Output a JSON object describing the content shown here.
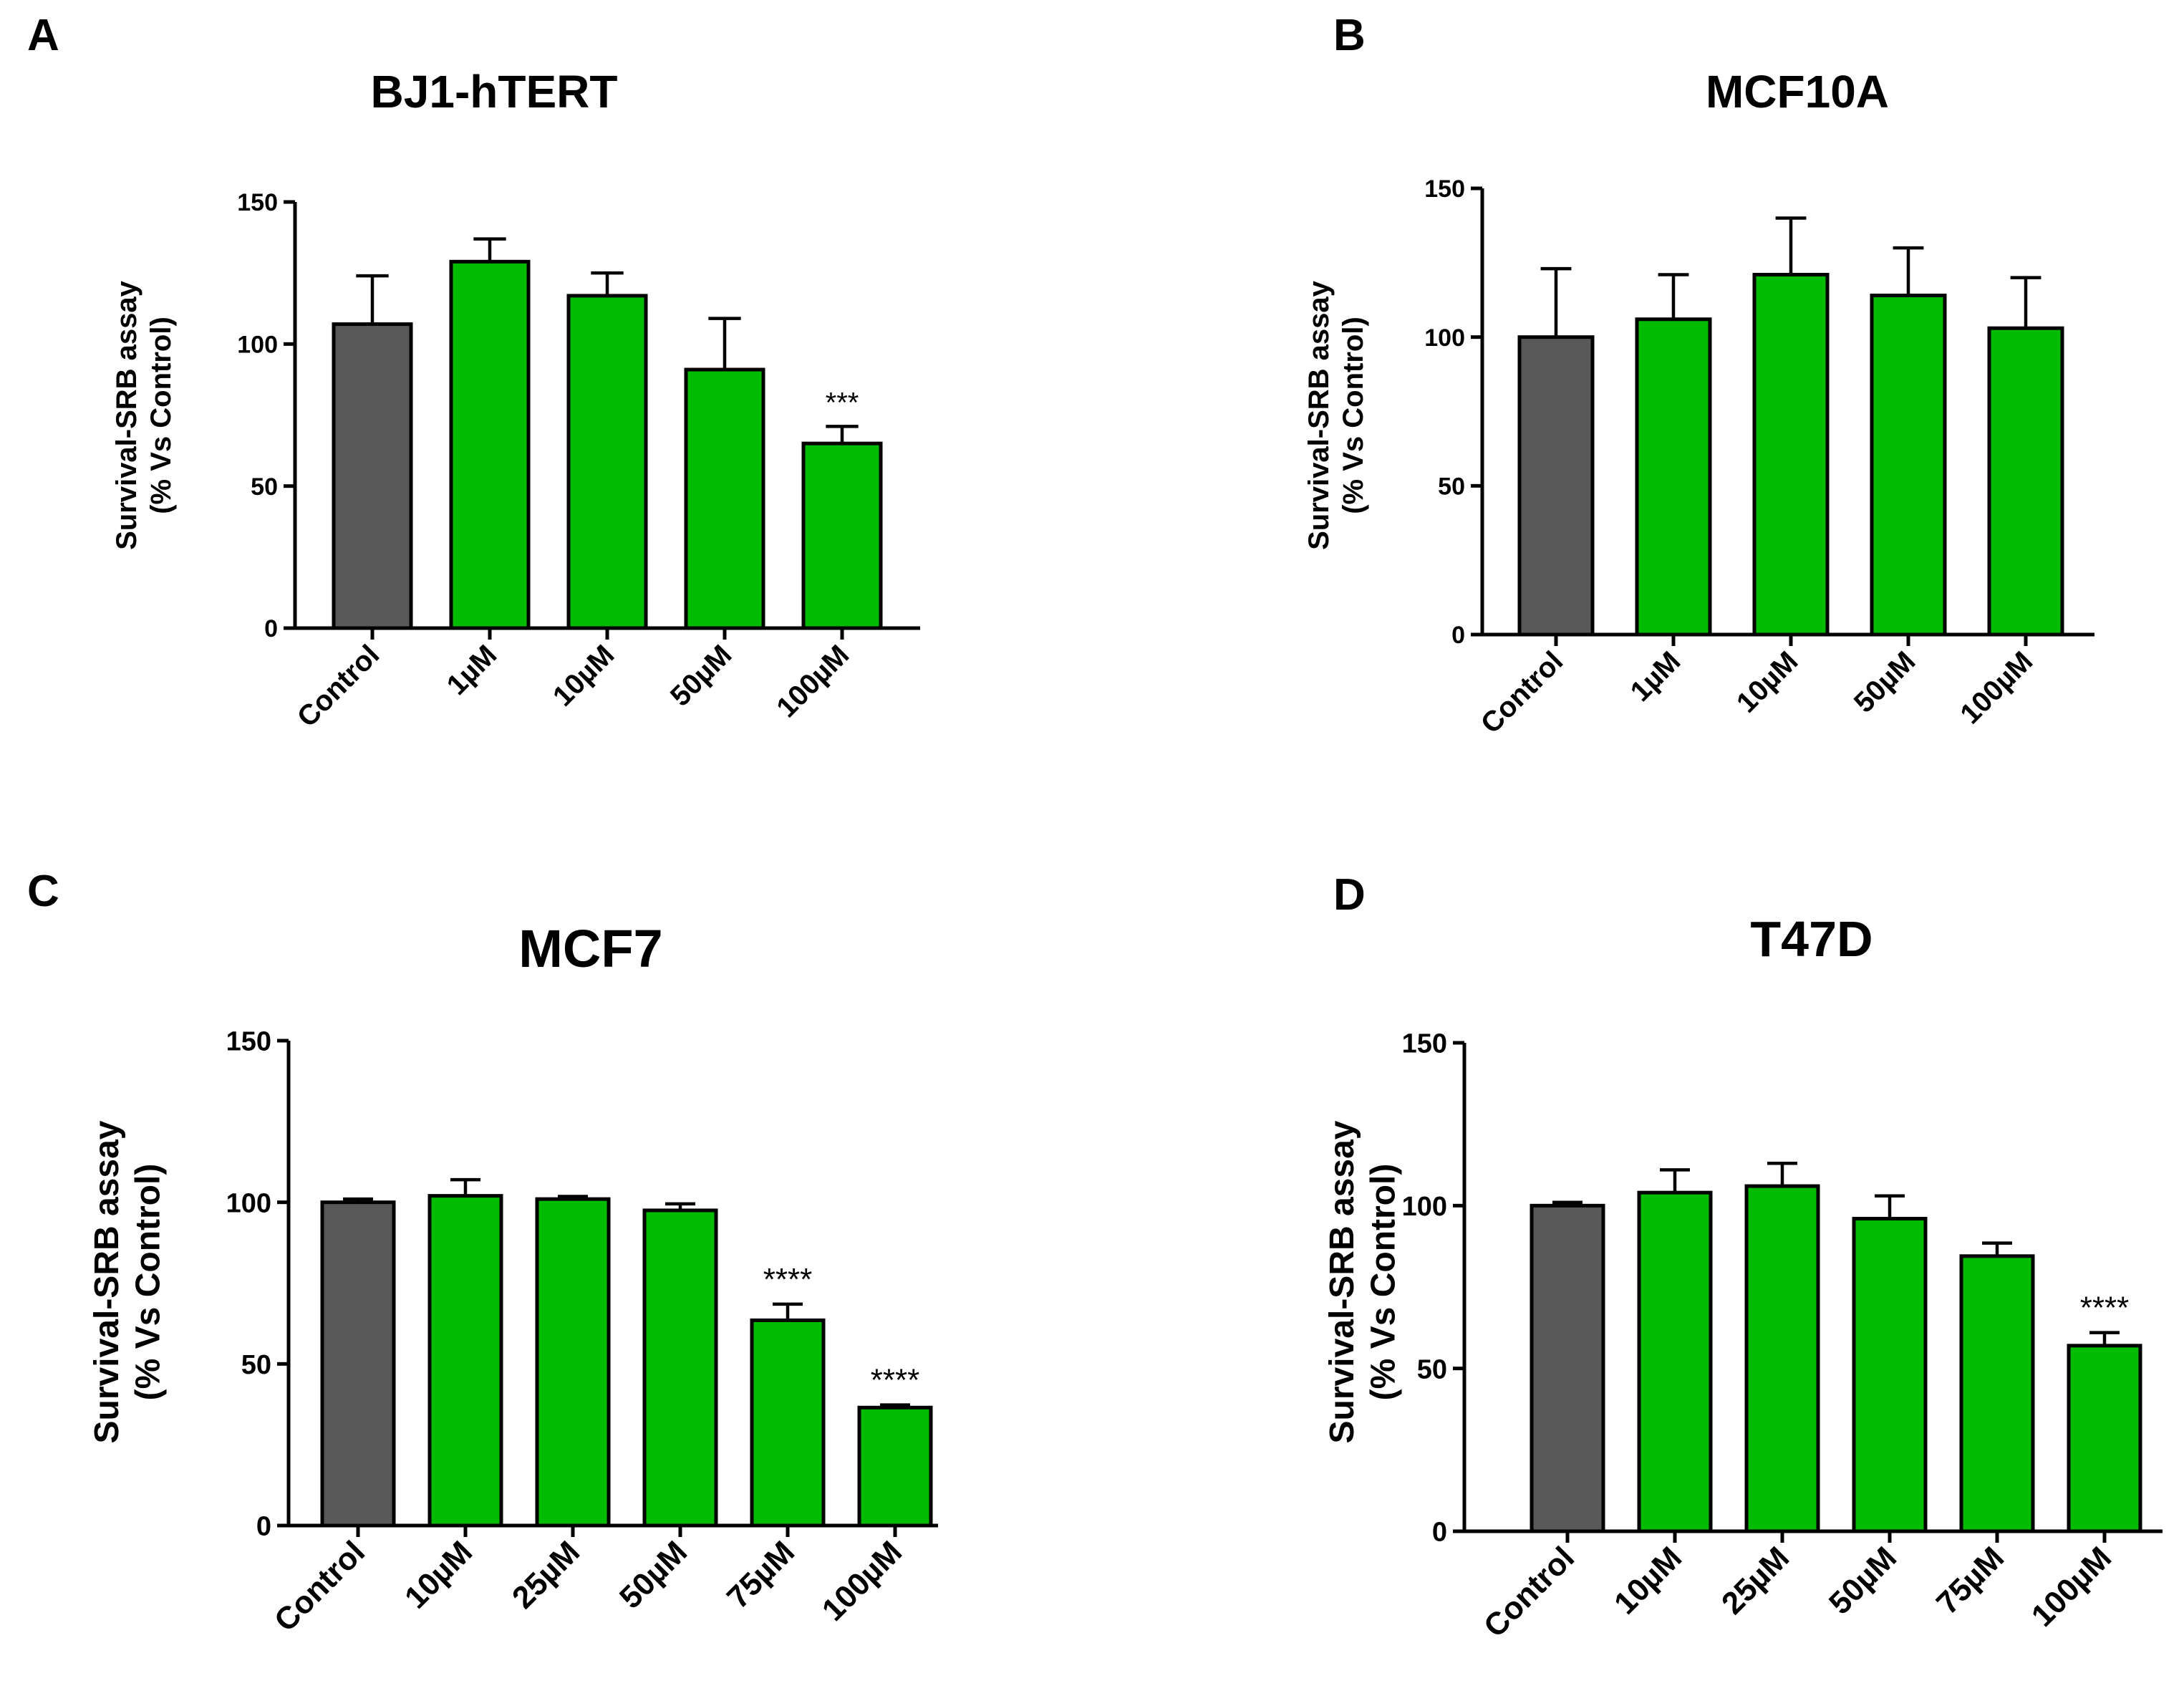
{
  "chart_data": [
    {
      "panel": "A",
      "type": "bar",
      "title": "BJ1-hTERT",
      "ylabel": [
        "Survival-SRB assay",
        "(% Vs Control)"
      ],
      "ylim": [
        0,
        150
      ],
      "yticks": [
        0,
        50,
        100,
        150
      ],
      "categories": [
        "Control",
        "1µM",
        "10µM",
        "50µM",
        "100µM"
      ],
      "values": [
        107,
        129,
        117,
        91,
        65
      ],
      "errors": [
        17,
        8,
        8,
        18,
        6
      ],
      "colors": [
        "#595959",
        "#00bb00",
        "#00bb00",
        "#00bb00",
        "#00bb00"
      ],
      "significance": [
        "",
        "",
        "",
        "",
        "***"
      ]
    },
    {
      "panel": "B",
      "type": "bar",
      "title": "MCF10A",
      "ylabel": [
        "Survival-SRB assay",
        "(% Vs Control)"
      ],
      "ylim": [
        0,
        150
      ],
      "yticks": [
        0,
        50,
        100,
        150
      ],
      "categories": [
        "Control",
        "1µM",
        "10µM",
        "50µM",
        "100µM"
      ],
      "values": [
        100,
        106,
        121,
        114,
        103
      ],
      "errors": [
        23,
        15,
        19,
        16,
        17
      ],
      "colors": [
        "#595959",
        "#00bb00",
        "#00bb00",
        "#00bb00",
        "#00bb00"
      ],
      "significance": [
        "",
        "",
        "",
        "",
        ""
      ]
    },
    {
      "panel": "C",
      "type": "bar",
      "title": "MCF7",
      "ylabel": [
        "Survival-SRB assay",
        "(% Vs Control)"
      ],
      "ylim": [
        0,
        150
      ],
      "yticks": [
        0,
        50,
        100,
        150
      ],
      "categories": [
        "Control",
        "10µM",
        "25µM",
        "50µM",
        "75µM",
        "100µM"
      ],
      "values": [
        100,
        102,
        101,
        97.5,
        63.5,
        36.5
      ],
      "errors": [
        1,
        5,
        0.8,
        2,
        5,
        0.8
      ],
      "colors": [
        "#595959",
        "#00bb00",
        "#00bb00",
        "#00bb00",
        "#00bb00",
        "#00bb00"
      ],
      "significance": [
        "",
        "",
        "",
        "",
        "****",
        "****"
      ]
    },
    {
      "panel": "D",
      "type": "bar",
      "title": "T47D",
      "ylabel": [
        "Survival-SRB assay",
        "(% Vs Control)"
      ],
      "ylim": [
        0,
        150
      ],
      "yticks": [
        0,
        50,
        100,
        150
      ],
      "categories": [
        "Control",
        "10µM",
        "25µM",
        "50µM",
        "75µM",
        "100µM"
      ],
      "values": [
        100,
        104,
        106,
        96,
        84.5,
        57
      ],
      "errors": [
        1,
        7,
        7,
        7,
        4,
        4
      ],
      "colors": [
        "#595959",
        "#00bb00",
        "#00bb00",
        "#00bb00",
        "#00bb00",
        "#00bb00"
      ],
      "significance": [
        "",
        "",
        "",
        "",
        "",
        "****"
      ]
    }
  ]
}
